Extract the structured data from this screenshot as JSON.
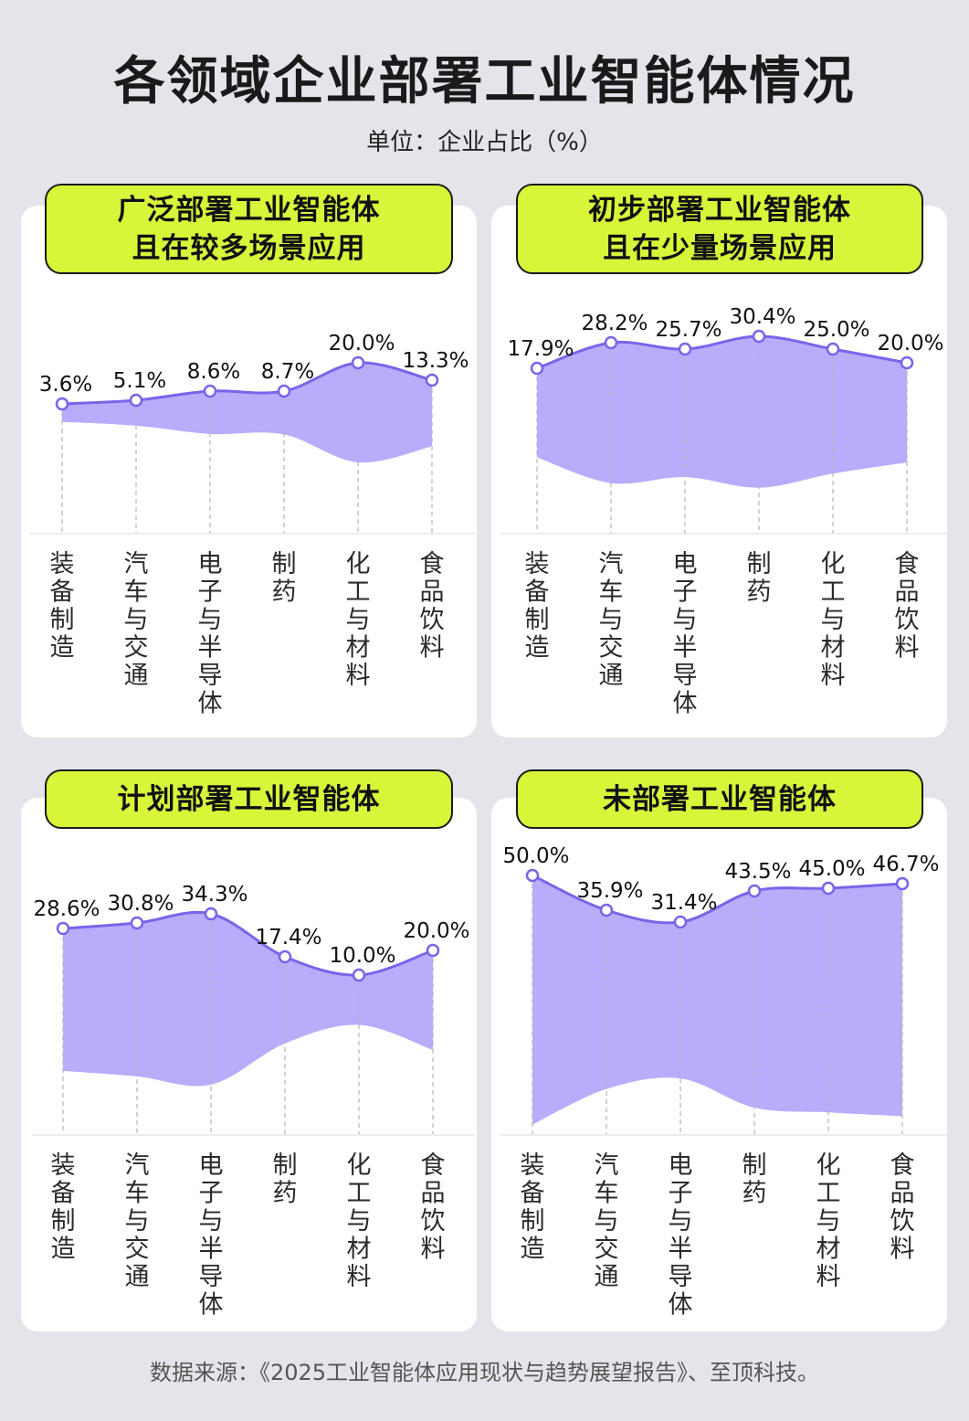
{
  "header": {
    "title": "各领域企业部署工业智能体情况",
    "subtitle": "单位：企业占比（%）"
  },
  "colors": {
    "background": "#e4e5ea",
    "card": "#ffffff",
    "pill": "#d8f53a",
    "band_fill": "#b9acfb",
    "line": "#7b63ea",
    "text": "#111111"
  },
  "panels": [
    {
      "title_line1": "广泛部署工业智能体",
      "title_line2": "且在较多场景应用"
    },
    {
      "title_line1": "初步部署工业智能体",
      "title_line2": "且在少量场景应用"
    },
    {
      "title_line1": "计划部署工业智能体",
      "title_line2": ""
    },
    {
      "title_line1": "未部署工业智能体",
      "title_line2": ""
    }
  ],
  "footer": {
    "source": "数据来源：《2025工业智能体应用现状与趋势展望报告》、至顶科技。"
  },
  "chart_data": [
    {
      "type": "area",
      "title": "广泛部署工业智能体 且在较多场景应用",
      "categories": [
        "装备制造",
        "汽车与交通",
        "电子与半导体",
        "制药",
        "化工与材料",
        "食品饮料"
      ],
      "values": [
        3.6,
        5.1,
        8.6,
        8.7,
        20.0,
        13.3
      ],
      "labels": [
        "3.6%",
        "5.1%",
        "8.6%",
        "8.7%",
        "20.0%",
        "13.3%"
      ],
      "ylabel": "企业占比（%）",
      "grid": false
    },
    {
      "type": "area",
      "title": "初步部署工业智能体 且在少量场景应用",
      "categories": [
        "装备制造",
        "汽车与交通",
        "电子与半导体",
        "制药",
        "化工与材料",
        "食品饮料"
      ],
      "values": [
        17.9,
        28.2,
        25.7,
        30.4,
        25.0,
        20.0
      ],
      "labels": [
        "17.9%",
        "28.2%",
        "25.7%",
        "30.4%",
        "25.0%",
        "20.0%"
      ],
      "ylabel": "企业占比（%）",
      "grid": false
    },
    {
      "type": "area",
      "title": "计划部署工业智能体",
      "categories": [
        "装备制造",
        "汽车与交通",
        "电子与半导体",
        "制药",
        "化工与材料",
        "食品饮料"
      ],
      "values": [
        28.6,
        30.8,
        34.3,
        17.4,
        10.0,
        20.0
      ],
      "labels": [
        "28.6%",
        "30.8%",
        "34.3%",
        "17.4%",
        "10.0%",
        "20.0%"
      ],
      "ylabel": "企业占比（%）",
      "grid": false
    },
    {
      "type": "area",
      "title": "未部署工业智能体",
      "categories": [
        "装备制造",
        "汽车与交通",
        "电子与半导体",
        "制药",
        "化工与材料",
        "食品饮料"
      ],
      "values": [
        50.0,
        35.9,
        31.4,
        43.5,
        45.0,
        46.7
      ],
      "labels": [
        "50.0%",
        "35.9%",
        "31.4%",
        "43.5%",
        "45.0%",
        "46.7%"
      ],
      "ylabel": "企业占比（%）",
      "grid": false
    }
  ]
}
